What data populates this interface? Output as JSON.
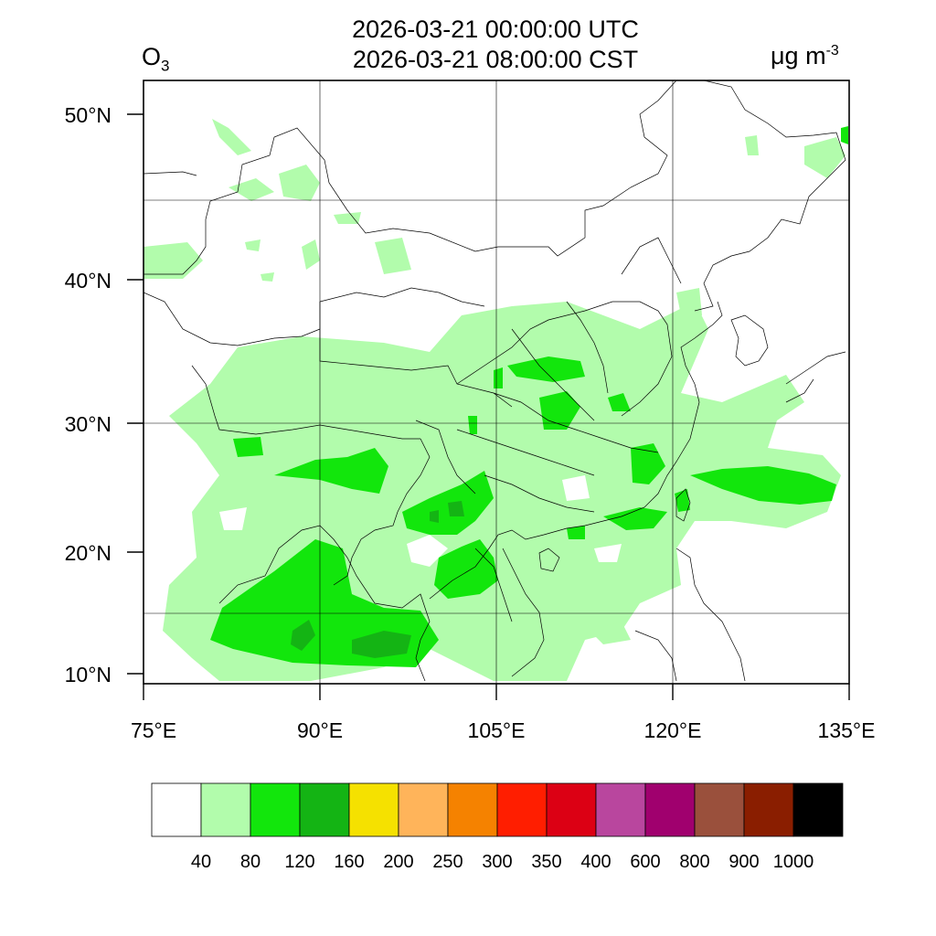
{
  "title": {
    "utc": "2026-03-21 00:00:00 UTC",
    "cst": "2026-03-21 08:00:00 CST"
  },
  "variable": {
    "symbol": "O",
    "subscript": "3"
  },
  "unit": {
    "text": "μg m",
    "superscript": "-3"
  },
  "axes": {
    "lat_labels": [
      "50°N",
      "40°N",
      "30°N",
      "20°N",
      "10°N"
    ],
    "lon_labels": [
      "75°E",
      "90°E",
      "105°E",
      "120°E",
      "135°E"
    ],
    "lat_range": [
      9,
      52
    ],
    "lon_range": [
      75,
      135
    ]
  },
  "legend": {
    "colors": [
      "#ffffff",
      "#b2fcac",
      "#12e60c",
      "#14b414",
      "#f5e100",
      "#ffb45a",
      "#f58200",
      "#ff1e00",
      "#dc0014",
      "#b9469e",
      "#a0006e",
      "#9a503c",
      "#8a1e00",
      "#000000"
    ],
    "labels": [
      "40",
      "80",
      "120",
      "160",
      "200",
      "250",
      "300",
      "350",
      "400",
      "600",
      "800",
      "900",
      "1000"
    ]
  },
  "colors": {
    "low": "#b2fcac",
    "mid": "#12e60c",
    "high": "#14b414",
    "border": "#000000"
  }
}
